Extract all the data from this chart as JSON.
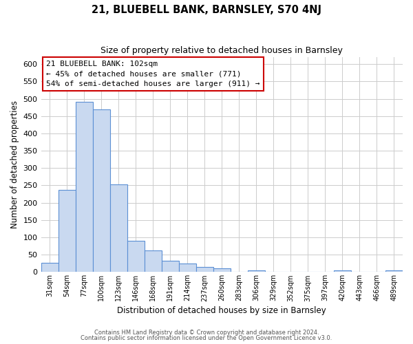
{
  "title_line1": "21, BLUEBELL BANK, BARNSLEY, S70 4NJ",
  "title_line2": "Size of property relative to detached houses in Barnsley",
  "xlabel": "Distribution of detached houses by size in Barnsley",
  "ylabel": "Number of detached properties",
  "bar_labels": [
    "31sqm",
    "54sqm",
    "77sqm",
    "100sqm",
    "123sqm",
    "146sqm",
    "168sqm",
    "191sqm",
    "214sqm",
    "237sqm",
    "260sqm",
    "283sqm",
    "306sqm",
    "329sqm",
    "352sqm",
    "375sqm",
    "397sqm",
    "420sqm",
    "443sqm",
    "466sqm",
    "489sqm"
  ],
  "bar_values": [
    27,
    237,
    492,
    469,
    252,
    90,
    62,
    33,
    24,
    14,
    11,
    0,
    5,
    0,
    0,
    0,
    0,
    5,
    0,
    0,
    4
  ],
  "bar_color": "#c9d9f0",
  "bar_edge_color": "#5b8fd4",
  "annotation_title": "21 BLUEBELL BANK: 102sqm",
  "annotation_line2": "← 45% of detached houses are smaller (771)",
  "annotation_line3": "54% of semi-detached houses are larger (911) →",
  "annotation_box_color": "#ffffff",
  "annotation_box_edge": "#cc0000",
  "ylim": [
    0,
    620
  ],
  "yticks": [
    0,
    50,
    100,
    150,
    200,
    250,
    300,
    350,
    400,
    450,
    500,
    550,
    600
  ],
  "footer_line1": "Contains HM Land Registry data © Crown copyright and database right 2024.",
  "footer_line2": "Contains public sector information licensed under the Open Government Licence v3.0.",
  "background_color": "#ffffff",
  "grid_color": "#cccccc"
}
